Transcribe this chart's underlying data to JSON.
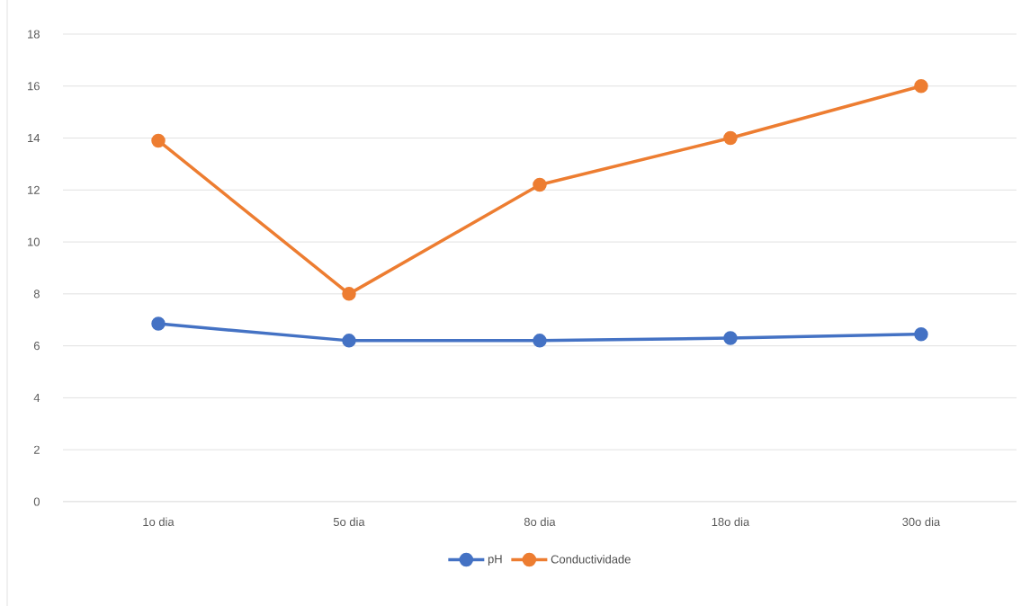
{
  "chart_data": {
    "type": "line",
    "categories": [
      "1o dia",
      "5o dia",
      "8o dia",
      "18o dia",
      "30o dia"
    ],
    "series": [
      {
        "name": "pH",
        "color": "#4472c4",
        "values": [
          6.85,
          6.2,
          6.2,
          6.3,
          6.45
        ]
      },
      {
        "name": "Conductividade",
        "color": "#ed7d31",
        "values": [
          13.9,
          8,
          12.2,
          14,
          16
        ]
      }
    ],
    "ylim": [
      0,
      18
    ],
    "yticks": [
      0,
      2,
      4,
      6,
      8,
      10,
      12,
      14,
      16,
      18
    ],
    "grid": "y",
    "legend": "bottom",
    "marker": "circle",
    "line_style": "solid"
  }
}
